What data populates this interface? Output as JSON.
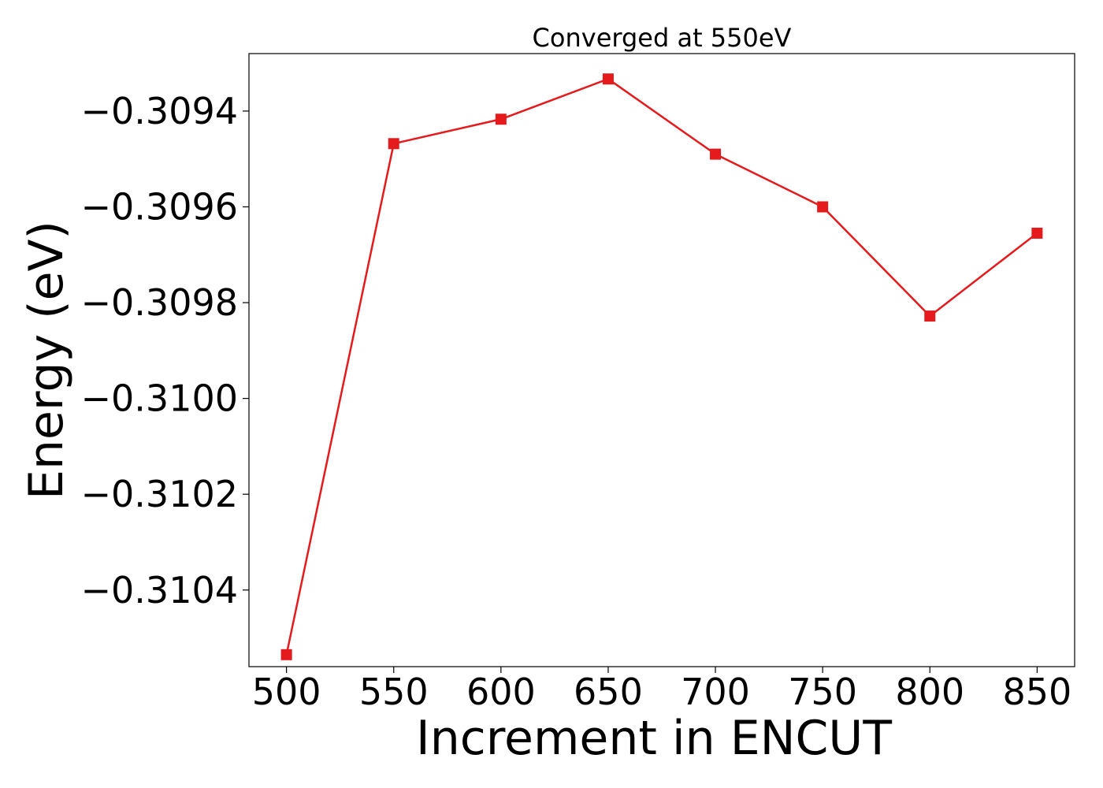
{
  "chart_data": {
    "type": "line",
    "title": "Converged at 550eV",
    "xlabel": "Increment in ENCUT",
    "ylabel": "Energy (eV)",
    "xlim": [
      482.5,
      867.5
    ],
    "ylim": [
      -0.31056,
      -0.30928
    ],
    "x_ticks": [
      500,
      550,
      600,
      650,
      700,
      750,
      800,
      850
    ],
    "x_tick_labels": [
      "500",
      "550",
      "600",
      "650",
      "700",
      "750",
      "800",
      "850"
    ],
    "y_ticks": [
      -0.3094,
      -0.3096,
      -0.3098,
      -0.31,
      -0.3102,
      -0.3104
    ],
    "y_tick_labels": [
      "−0.3094",
      "−0.3096",
      "−0.3098",
      "−0.3100",
      "−0.3102",
      "−0.3104"
    ],
    "grid": false,
    "legend": "none",
    "series": [
      {
        "color": "#e41a1c",
        "marker": "square",
        "x": [
          500,
          550,
          600,
          650,
          700,
          750,
          800,
          850
        ],
        "y": [
          -0.310535,
          -0.309468,
          -0.309417,
          -0.309333,
          -0.30949,
          -0.3096,
          -0.309828,
          -0.309655
        ]
      }
    ]
  }
}
